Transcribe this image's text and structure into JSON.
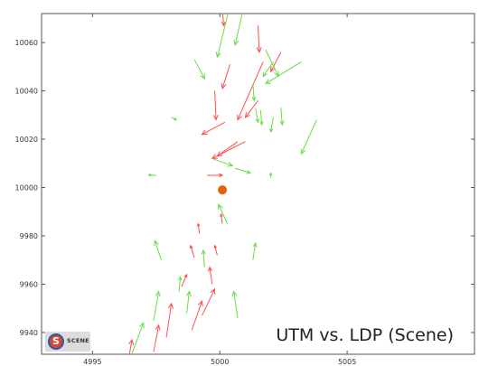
{
  "chart_data": {
    "type": "scatter",
    "title": "UTM vs. LDP (Scene)",
    "xlabel": "",
    "ylabel": "",
    "xlim": [
      4993,
      5010
    ],
    "ylim": [
      9931,
      10072
    ],
    "x_ticks": [
      4995,
      5000,
      5005
    ],
    "x_tick_labels": [
      "4995",
      "5000",
      "5005"
    ],
    "y_ticks": [
      9940,
      9960,
      9980,
      10000,
      10020,
      10040,
      10060
    ],
    "y_tick_labels": [
      "9940",
      "9960",
      "9980",
      "10000",
      "10020",
      "10040",
      "10060"
    ],
    "grid": false,
    "center_point": {
      "x": 5000.1,
      "y": 9999,
      "color": "#e8600a"
    },
    "series": [
      {
        "color": "#ff4d4d",
        "vectors": [
          {
            "x": 5000.1,
            "y": 10074,
            "dx": 0.05,
            "dy": -7
          },
          {
            "x": 5001.5,
            "y": 10067,
            "dx": 0.05,
            "dy": -11
          },
          {
            "x": 5000.4,
            "y": 10051,
            "dx": -0.3,
            "dy": -10
          },
          {
            "x": 4999.8,
            "y": 10040,
            "dx": 0.05,
            "dy": -12
          },
          {
            "x": 5001.7,
            "y": 10052,
            "dx": -1.0,
            "dy": -24
          },
          {
            "x": 5000.2,
            "y": 10027,
            "dx": -0.9,
            "dy": -5
          },
          {
            "x": 5002.4,
            "y": 10056,
            "dx": -0.4,
            "dy": -8
          },
          {
            "x": 5001.5,
            "y": 10036,
            "dx": -0.5,
            "dy": -7
          },
          {
            "x": 5001.0,
            "y": 10019,
            "dx": -1.3,
            "dy": -7
          },
          {
            "x": 5000.7,
            "y": 10019,
            "dx": -0.8,
            "dy": -6
          },
          {
            "x": 4999.5,
            "y": 10005,
            "dx": 0.6,
            "dy": 0.1
          },
          {
            "x": 4999.2,
            "y": 9981,
            "dx": -0.05,
            "dy": 4
          },
          {
            "x": 5000.1,
            "y": 9985,
            "dx": -0.05,
            "dy": 4
          },
          {
            "x": 4999.0,
            "y": 9971,
            "dx": -0.15,
            "dy": 5
          },
          {
            "x": 4999.9,
            "y": 9972,
            "dx": -0.1,
            "dy": 4
          },
          {
            "x": 4999.7,
            "y": 9960,
            "dx": -0.1,
            "dy": 7
          },
          {
            "x": 4998.5,
            "y": 9959,
            "dx": 0.2,
            "dy": 5
          },
          {
            "x": 4997.9,
            "y": 9938,
            "dx": 0.2,
            "dy": 14
          },
          {
            "x": 4998.9,
            "y": 9941,
            "dx": 0.4,
            "dy": 12
          },
          {
            "x": 4999.3,
            "y": 9947,
            "dx": 0.5,
            "dy": 11
          },
          {
            "x": 4997.4,
            "y": 9932,
            "dx": 0.2,
            "dy": 11
          },
          {
            "x": 4996.4,
            "y": 9928,
            "dx": 0.15,
            "dy": 9
          }
        ]
      },
      {
        "color": "#66dd44",
        "vectors": [
          {
            "x": 5000.6,
            "y": 10084,
            "dx": -0.7,
            "dy": -30
          },
          {
            "x": 5000.9,
            "y": 10073,
            "dx": -0.3,
            "dy": -14
          },
          {
            "x": 4999.0,
            "y": 10053,
            "dx": 0.4,
            "dy": -8
          },
          {
            "x": 5001.8,
            "y": 10057,
            "dx": 0.5,
            "dy": -11
          },
          {
            "x": 5002.1,
            "y": 10052,
            "dx": -0.4,
            "dy": -6
          },
          {
            "x": 5003.2,
            "y": 10052,
            "dx": -1.4,
            "dy": -9
          },
          {
            "x": 5001.3,
            "y": 10043,
            "dx": 0.05,
            "dy": -7
          },
          {
            "x": 5001.4,
            "y": 10033,
            "dx": 0.1,
            "dy": -6
          },
          {
            "x": 5002.4,
            "y": 10033,
            "dx": 0.05,
            "dy": -7
          },
          {
            "x": 5002.1,
            "y": 10029,
            "dx": -0.1,
            "dy": -6
          },
          {
            "x": 5001.6,
            "y": 10032,
            "dx": 0.05,
            "dy": -6
          },
          {
            "x": 5003.8,
            "y": 10028,
            "dx": -0.6,
            "dy": -14
          },
          {
            "x": 4998.1,
            "y": 10029,
            "dx": 0.2,
            "dy": -1
          },
          {
            "x": 4999.7,
            "y": 10012,
            "dx": 0.8,
            "dy": -3
          },
          {
            "x": 5000.6,
            "y": 10008,
            "dx": 0.6,
            "dy": -2
          },
          {
            "x": 4997.5,
            "y": 10005,
            "dx": -0.3,
            "dy": 0.2
          },
          {
            "x": 5002.0,
            "y": 10004,
            "dx": 0.0,
            "dy": 2
          },
          {
            "x": 5000.3,
            "y": 9985,
            "dx": -0.35,
            "dy": 8
          },
          {
            "x": 4997.7,
            "y": 9970,
            "dx": -0.25,
            "dy": 8
          },
          {
            "x": 4999.4,
            "y": 9967,
            "dx": -0.05,
            "dy": 7
          },
          {
            "x": 5001.3,
            "y": 9970,
            "dx": 0.1,
            "dy": 7
          },
          {
            "x": 4998.4,
            "y": 9957,
            "dx": 0.05,
            "dy": 6
          },
          {
            "x": 4998.7,
            "y": 9948,
            "dx": 0.1,
            "dy": 9
          },
          {
            "x": 5000.7,
            "y": 9946,
            "dx": -0.15,
            "dy": 11
          },
          {
            "x": 4997.4,
            "y": 9945,
            "dx": 0.2,
            "dy": 12
          },
          {
            "x": 4996.5,
            "y": 9930,
            "dx": 0.5,
            "dy": 14
          }
        ]
      }
    ]
  },
  "logo": {
    "label": "SCENE",
    "letter": "S"
  }
}
